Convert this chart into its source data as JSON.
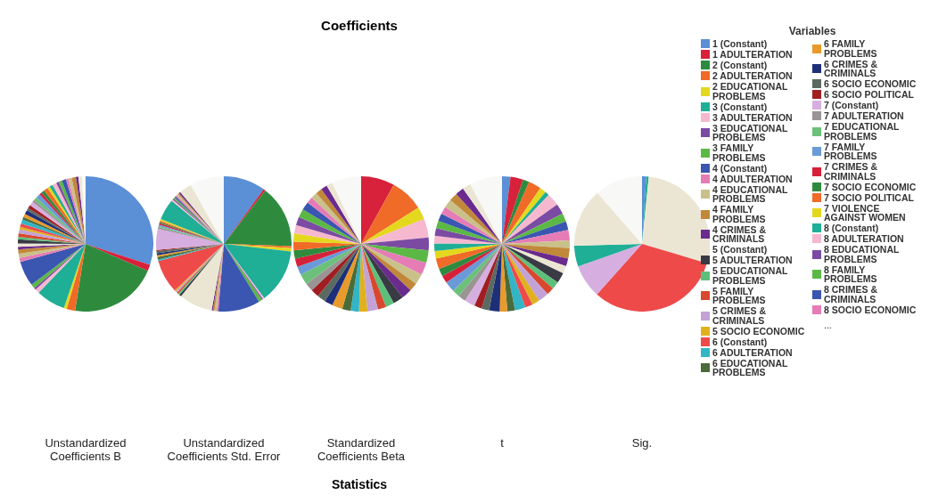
{
  "chart_data": {
    "type": "pie",
    "title": "Coefficients",
    "xlabel": "Statistics",
    "legend_title": "Variables",
    "legend": "right",
    "annotations": [
      "..."
    ],
    "categories": [
      "1 (Constant)",
      "1 ADULTERATION",
      "2 (Constant)",
      "2 ADULTERATION",
      "2 EDUCATIONAL PROBLEMS",
      "3 (Constant)",
      "3 ADULTERATION",
      "3 EDUCATIONAL PROBLEMS",
      "3 FAMILY PROBLEMS",
      "4 (Constant)",
      "4 ADULTERATION",
      "4 EDUCATIONAL PROBLEMS",
      "4 FAMILY PROBLEMS",
      "4 CRIMES & CRIMINALS",
      "5 (Constant)",
      "5 ADULTERATION",
      "5 EDUCATIONAL PROBLEMS",
      "5 FAMILY PROBLEMS",
      "5 CRIMES & CRIMINALS",
      "5 SOCIO ECONOMIC",
      "6 (Constant)",
      "6 ADULTERATION",
      "6 EDUCATIONAL PROBLEMS",
      "6 FAMILY PROBLEMS",
      "6 CRIMES & CRIMINALS",
      "6 SOCIO ECONOMIC",
      "6 SOCIO POLITICAL",
      "7 (Constant)",
      "7 ADULTERATION",
      "7 EDUCATIONAL PROBLEMS",
      "7 FAMILY PROBLEMS",
      "7 CRIMES & CRIMINALS",
      "7 SOCIO ECONOMIC",
      "7 SOCIO POLITICAL",
      "7 VIOLENCE AGAINST WOMEN",
      "8 (Constant)",
      "8 ADULTERATION",
      "8 EDUCATIONAL PROBLEMS",
      "8 FAMILY PROBLEMS",
      "8 CRIMES & CRIMINALS",
      "8 SOCIO ECONOMIC",
      null,
      null,
      null,
      null,
      null
    ],
    "colors": [
      "#5b8fd6",
      "#d8213a",
      "#2e8b3e",
      "#f06a28",
      "#e3d81e",
      "#1fae96",
      "#f6b8cf",
      "#7b4aa3",
      "#5bb845",
      "#3a56b0",
      "#e57cb5",
      "#c9c08a",
      "#c2883a",
      "#6a2a8e",
      "#ebe6d4",
      "#3a3a44",
      "#5cc07a",
      "#d8482e",
      "#c3a2d6",
      "#e0b11e",
      "#ee4a4a",
      "#33b5c5",
      "#4a6b3a",
      "#e89a2a",
      "#1e2f7a",
      "#5a6a60",
      "#a01e22",
      "#d6aee0",
      "#9a9494",
      "#6cc07a",
      "#6a9ad8",
      "#d6213a",
      "#2e8b3e",
      "#f06a28",
      "#e3d81e",
      "#1fae96",
      "#f6b8cf",
      "#7b4aa3",
      "#5bb845",
      "#3a56b0",
      "#e57cb5",
      "#c9c08a",
      "#c2883a",
      "#6a2a8e",
      "#ebe6d4",
      "#f8f8f6"
    ],
    "series": [
      {
        "name": "Unstandardized Coefficients B",
        "values": [
          30,
          1.5,
          21,
          2,
          0.7,
          7,
          1,
          0.5,
          1,
          6,
          1,
          1,
          1.0,
          0.6,
          0.8,
          1.0,
          0.6,
          0.8,
          1.0,
          0.6,
          0.8,
          1.0,
          0.6,
          0.8,
          1.0,
          0.6,
          0.8,
          1.0,
          0.6,
          0.8,
          1.0,
          0.6,
          0.8,
          1.0,
          0.6,
          0.8,
          1.0,
          0.6,
          0.8,
          1.0,
          0.6,
          0.8,
          1.0,
          0.6,
          0.8,
          0.9
        ]
      },
      {
        "name": "Unstandardized Coefficients Std. Error",
        "values": [
          10,
          0.5,
          15,
          0.5,
          0.8,
          13,
          0.4,
          0.3,
          0.8,
          10,
          0.4,
          0.5,
          0.4,
          0.3,
          8,
          0.5,
          0.4,
          0.4,
          0.4,
          0.3,
          8,
          0.4,
          0.6,
          0.4,
          0.5,
          0.5,
          0.3,
          5,
          0.4,
          0.3,
          0.3,
          0.4,
          0.3,
          0.3,
          0.4,
          5,
          0.4,
          0.3,
          0.4,
          0.3,
          0.4,
          0.4,
          0.3,
          0.4,
          3,
          8.1
        ]
      },
      {
        "name": "Standardized Coefficients Beta",
        "values": [
          0,
          8,
          0,
          8,
          3,
          0,
          4.5,
          3,
          3,
          0,
          3,
          2.5,
          2,
          2.5,
          0,
          2.5,
          2,
          2,
          2.5,
          2,
          0,
          2,
          2,
          2.5,
          2,
          2,
          2,
          0,
          2,
          2.5,
          2,
          2,
          2,
          2,
          2,
          0,
          2,
          2,
          2,
          2,
          1.5,
          1.5,
          1.5,
          1.5,
          1.5,
          7
        ]
      },
      {
        "name": "t",
        "values": [
          2,
          3,
          1.5,
          3,
          1.5,
          1,
          3,
          2.5,
          2,
          2,
          2.5,
          1.8,
          2.5,
          1.8,
          1.8,
          2.5,
          1.8,
          1.8,
          2.5,
          1.8,
          1.8,
          2.5,
          1.8,
          1.8,
          2.5,
          1.8,
          1.8,
          2.5,
          1.8,
          1.8,
          2.5,
          1.8,
          1.8,
          2.5,
          1.8,
          1.8,
          1.8,
          1.8,
          1.8,
          1.8,
          1.8,
          2,
          2,
          2,
          2,
          7.7
        ]
      },
      {
        "name": "Sig.",
        "values": [
          1,
          0,
          0,
          0,
          0,
          0.6,
          0,
          0,
          0,
          0,
          0,
          0,
          0,
          0,
          28,
          0,
          0,
          0,
          0,
          0,
          32,
          0,
          0,
          0,
          0,
          0,
          0,
          8,
          0,
          0,
          0,
          0,
          0,
          0,
          0,
          5,
          0,
          0,
          0,
          0,
          0,
          0,
          0,
          0,
          14,
          11.4
        ]
      }
    ]
  }
}
